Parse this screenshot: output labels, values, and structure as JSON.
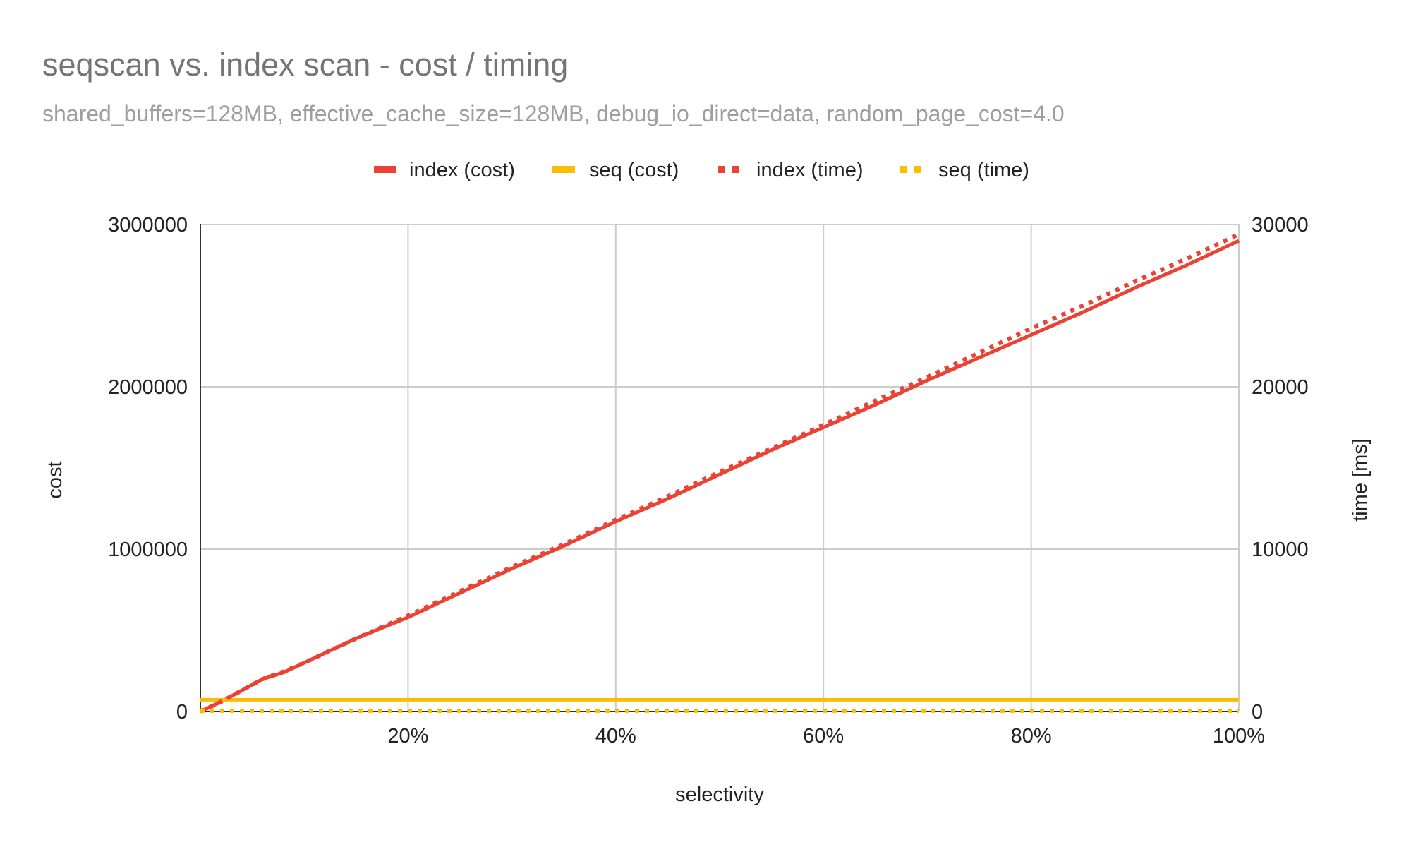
{
  "chart_data": {
    "type": "line",
    "title": "seqscan vs. index scan - cost / timing",
    "subtitle": "shared_buffers=128MB, effective_cache_size=128MB, debug_io_direct=data, random_page_cost=4.0",
    "xlabel": "selectivity",
    "ylabel": "cost",
    "y2label": "time [ms]",
    "xlim": [
      0,
      100
    ],
    "ylim": [
      0,
      3000000
    ],
    "y2lim": [
      0,
      30000
    ],
    "x_ticks": [
      "20%",
      "40%",
      "60%",
      "80%",
      "100%"
    ],
    "y_ticks": [
      "0",
      "1000000",
      "2000000",
      "3000000"
    ],
    "y2_ticks": [
      "0",
      "10000",
      "20000",
      "30000"
    ],
    "legend": "top",
    "grid": true,
    "x": [
      0,
      2,
      4,
      6,
      8,
      10,
      15,
      20,
      25,
      30,
      35,
      40,
      45,
      50,
      55,
      60,
      65,
      70,
      75,
      80,
      85,
      90,
      95,
      100
    ],
    "series": [
      {
        "name": "index (cost)",
        "axis": "left",
        "style": "solid",
        "color": "#ea4335",
        "values": [
          0,
          60000,
          130000,
          200000,
          240000,
          300000,
          450000,
          580000,
          730000,
          880000,
          1020000,
          1170000,
          1310000,
          1460000,
          1610000,
          1750000,
          1890000,
          2040000,
          2180000,
          2320000,
          2460000,
          2610000,
          2750000,
          2900000
        ]
      },
      {
        "name": "seq (cost)",
        "axis": "left",
        "style": "solid",
        "color": "#fbbc04",
        "values": [
          72000,
          72000,
          72000,
          72000,
          72000,
          72000,
          72000,
          72000,
          72000,
          72000,
          72000,
          72000,
          72000,
          72000,
          72000,
          72000,
          72000,
          72000,
          72000,
          72000,
          72000,
          72000,
          72000,
          72000
        ]
      },
      {
        "name": "index (time)",
        "axis": "right",
        "style": "dotted",
        "color": "#ea4335",
        "values": [
          0,
          600,
          1300,
          2000,
          2450,
          3000,
          4500,
          5900,
          7400,
          8900,
          10300,
          11800,
          13250,
          14750,
          16200,
          17650,
          19150,
          20600,
          22100,
          23600,
          25000,
          26500,
          27900,
          29400
        ]
      },
      {
        "name": "seq (time)",
        "axis": "right",
        "style": "dotted",
        "color": "#fbbc04",
        "values": [
          50,
          50,
          50,
          50,
          50,
          50,
          50,
          50,
          50,
          50,
          50,
          50,
          50,
          50,
          50,
          50,
          50,
          50,
          50,
          50,
          50,
          50,
          50,
          50
        ]
      }
    ]
  }
}
